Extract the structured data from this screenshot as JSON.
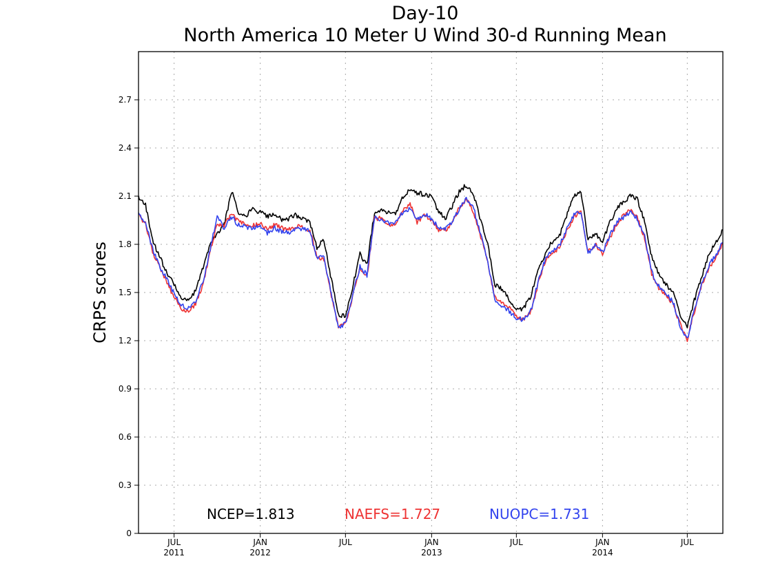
{
  "chart_data": {
    "type": "line",
    "title": "Day-10",
    "subtitle": "North America 10 Meter U Wind 30-d Running Mean",
    "xlabel": "",
    "ylabel": "CRPS scores",
    "ylim": [
      0,
      3.0
    ],
    "xlim": [
      "2011-04-16",
      "2014-09-15"
    ],
    "yticks": [
      0,
      0.3,
      0.6,
      0.9,
      1.2,
      1.5,
      1.8,
      2.1,
      2.4,
      2.7
    ],
    "ytick_labels": [
      "0",
      "0.3",
      "0.6",
      "0.9",
      "1.2",
      "1.5",
      "1.8",
      "2.1",
      "2.4",
      "2.7"
    ],
    "xticks": [
      {
        "date": "2011-07-01",
        "month": "JUL",
        "year": "2011"
      },
      {
        "date": "2012-01-01",
        "month": "JAN",
        "year": "2012"
      },
      {
        "date": "2012-07-01",
        "month": "JUL",
        "year": ""
      },
      {
        "date": "2013-01-01",
        "month": "JAN",
        "year": "2013"
      },
      {
        "date": "2013-07-01",
        "month": "JUL",
        "year": ""
      },
      {
        "date": "2014-01-01",
        "month": "JAN",
        "year": "2014"
      },
      {
        "date": "2014-07-01",
        "month": "JUL",
        "year": ""
      }
    ],
    "grid": true,
    "legend_position": "bottom-inside",
    "series": [
      {
        "name": "NCEP",
        "legend_label": "NCEP=1.813",
        "color": "#000000",
        "points": [
          [
            "2011-04-16",
            2.09
          ],
          [
            "2011-05-01",
            2.05
          ],
          [
            "2011-05-16",
            1.82
          ],
          [
            "2011-06-01",
            1.72
          ],
          [
            "2011-06-16",
            1.62
          ],
          [
            "2011-07-01",
            1.55
          ],
          [
            "2011-07-16",
            1.47
          ],
          [
            "2011-08-01",
            1.45
          ],
          [
            "2011-08-16",
            1.51
          ],
          [
            "2011-09-01",
            1.66
          ],
          [
            "2011-09-16",
            1.8
          ],
          [
            "2011-10-01",
            1.86
          ],
          [
            "2011-10-16",
            1.92
          ],
          [
            "2011-11-01",
            2.13
          ],
          [
            "2011-11-16",
            2.0
          ],
          [
            "2011-12-01",
            1.98
          ],
          [
            "2011-12-16",
            2.02
          ],
          [
            "2012-01-01",
            2.0
          ],
          [
            "2012-01-16",
            1.97
          ],
          [
            "2012-02-01",
            1.99
          ],
          [
            "2012-02-16",
            1.95
          ],
          [
            "2012-03-01",
            1.96
          ],
          [
            "2012-03-16",
            1.98
          ],
          [
            "2012-04-01",
            1.96
          ],
          [
            "2012-04-16",
            1.94
          ],
          [
            "2012-05-01",
            1.78
          ],
          [
            "2012-05-16",
            1.83
          ],
          [
            "2012-06-01",
            1.58
          ],
          [
            "2012-06-16",
            1.36
          ],
          [
            "2012-07-01",
            1.35
          ],
          [
            "2012-07-16",
            1.53
          ],
          [
            "2012-08-01",
            1.74
          ],
          [
            "2012-08-16",
            1.67
          ],
          [
            "2012-09-01",
            2.0
          ],
          [
            "2012-09-16",
            2.01
          ],
          [
            "2012-10-01",
            2.0
          ],
          [
            "2012-10-16",
            1.99
          ],
          [
            "2012-11-01",
            2.1
          ],
          [
            "2012-11-16",
            2.14
          ],
          [
            "2012-12-01",
            2.12
          ],
          [
            "2012-12-16",
            2.11
          ],
          [
            "2013-01-01",
            2.1
          ],
          [
            "2013-01-16",
            2.0
          ],
          [
            "2013-02-01",
            1.96
          ],
          [
            "2013-02-16",
            2.05
          ],
          [
            "2013-03-01",
            2.13
          ],
          [
            "2013-03-16",
            2.17
          ],
          [
            "2013-04-01",
            2.11
          ],
          [
            "2013-04-16",
            1.95
          ],
          [
            "2013-05-01",
            1.8
          ],
          [
            "2013-05-16",
            1.55
          ],
          [
            "2013-06-01",
            1.52
          ],
          [
            "2013-06-16",
            1.45
          ],
          [
            "2013-07-01",
            1.39
          ],
          [
            "2013-07-16",
            1.4
          ],
          [
            "2013-08-01",
            1.48
          ],
          [
            "2013-08-16",
            1.63
          ],
          [
            "2013-09-01",
            1.75
          ],
          [
            "2013-09-16",
            1.82
          ],
          [
            "2013-10-01",
            1.85
          ],
          [
            "2013-10-16",
            1.98
          ],
          [
            "2013-11-01",
            2.1
          ],
          [
            "2013-11-16",
            2.13
          ],
          [
            "2013-12-01",
            1.83
          ],
          [
            "2013-12-16",
            1.87
          ],
          [
            "2014-01-01",
            1.82
          ],
          [
            "2014-01-16",
            1.93
          ],
          [
            "2014-02-01",
            2.02
          ],
          [
            "2014-02-16",
            2.07
          ],
          [
            "2014-03-01",
            2.1
          ],
          [
            "2014-03-16",
            2.08
          ],
          [
            "2014-04-01",
            1.94
          ],
          [
            "2014-04-16",
            1.72
          ],
          [
            "2014-05-01",
            1.62
          ],
          [
            "2014-05-16",
            1.55
          ],
          [
            "2014-06-01",
            1.5
          ],
          [
            "2014-06-16",
            1.36
          ],
          [
            "2014-07-01",
            1.29
          ],
          [
            "2014-07-16",
            1.45
          ],
          [
            "2014-08-01",
            1.6
          ],
          [
            "2014-08-16",
            1.74
          ],
          [
            "2014-09-01",
            1.82
          ],
          [
            "2014-09-15",
            1.89
          ]
        ]
      },
      {
        "name": "NAEFS",
        "legend_label": "NAEFS=1.727",
        "color": "#ee3333",
        "points": [
          [
            "2011-04-16",
            1.98
          ],
          [
            "2011-05-01",
            1.93
          ],
          [
            "2011-05-16",
            1.75
          ],
          [
            "2011-06-01",
            1.65
          ],
          [
            "2011-06-16",
            1.56
          ],
          [
            "2011-07-01",
            1.47
          ],
          [
            "2011-07-16",
            1.4
          ],
          [
            "2011-08-01",
            1.38
          ],
          [
            "2011-08-16",
            1.43
          ],
          [
            "2011-09-01",
            1.55
          ],
          [
            "2011-09-16",
            1.75
          ],
          [
            "2011-10-01",
            1.93
          ],
          [
            "2011-10-16",
            1.92
          ],
          [
            "2011-11-01",
            1.99
          ],
          [
            "2011-11-16",
            1.94
          ],
          [
            "2011-12-01",
            1.93
          ],
          [
            "2011-12-16",
            1.92
          ],
          [
            "2012-01-01",
            1.93
          ],
          [
            "2012-01-16",
            1.89
          ],
          [
            "2012-02-01",
            1.92
          ],
          [
            "2012-02-16",
            1.9
          ],
          [
            "2012-03-01",
            1.89
          ],
          [
            "2012-03-16",
            1.91
          ],
          [
            "2012-04-01",
            1.91
          ],
          [
            "2012-04-16",
            1.89
          ],
          [
            "2012-05-01",
            1.72
          ],
          [
            "2012-05-16",
            1.71
          ],
          [
            "2012-06-01",
            1.48
          ],
          [
            "2012-06-16",
            1.28
          ],
          [
            "2012-07-01",
            1.3
          ],
          [
            "2012-07-16",
            1.47
          ],
          [
            "2012-08-01",
            1.65
          ],
          [
            "2012-08-16",
            1.6
          ],
          [
            "2012-09-01",
            1.96
          ],
          [
            "2012-09-16",
            1.96
          ],
          [
            "2012-10-01",
            1.92
          ],
          [
            "2012-10-16",
            1.93
          ],
          [
            "2012-11-01",
            2.02
          ],
          [
            "2012-11-16",
            2.05
          ],
          [
            "2012-12-01",
            1.94
          ],
          [
            "2012-12-16",
            1.98
          ],
          [
            "2013-01-01",
            1.95
          ],
          [
            "2013-01-16",
            1.89
          ],
          [
            "2013-02-01",
            1.89
          ],
          [
            "2013-02-16",
            1.94
          ],
          [
            "2013-03-01",
            2.03
          ],
          [
            "2013-03-16",
            2.08
          ],
          [
            "2013-04-01",
            2.0
          ],
          [
            "2013-04-16",
            1.85
          ],
          [
            "2013-05-01",
            1.68
          ],
          [
            "2013-05-16",
            1.47
          ],
          [
            "2013-06-01",
            1.44
          ],
          [
            "2013-06-16",
            1.41
          ],
          [
            "2013-07-01",
            1.35
          ],
          [
            "2013-07-16",
            1.33
          ],
          [
            "2013-08-01",
            1.38
          ],
          [
            "2013-08-16",
            1.55
          ],
          [
            "2013-09-01",
            1.7
          ],
          [
            "2013-09-16",
            1.75
          ],
          [
            "2013-10-01",
            1.78
          ],
          [
            "2013-10-16",
            1.88
          ],
          [
            "2013-11-01",
            1.97
          ],
          [
            "2013-11-16",
            2.02
          ],
          [
            "2013-12-01",
            1.75
          ],
          [
            "2013-12-16",
            1.8
          ],
          [
            "2014-01-01",
            1.74
          ],
          [
            "2014-01-16",
            1.84
          ],
          [
            "2014-02-01",
            1.93
          ],
          [
            "2014-02-16",
            1.98
          ],
          [
            "2014-03-01",
            2.01
          ],
          [
            "2014-03-16",
            1.97
          ],
          [
            "2014-04-01",
            1.84
          ],
          [
            "2014-04-16",
            1.62
          ],
          [
            "2014-05-01",
            1.53
          ],
          [
            "2014-05-16",
            1.48
          ],
          [
            "2014-06-01",
            1.43
          ],
          [
            "2014-06-16",
            1.3
          ],
          [
            "2014-07-01",
            1.21
          ],
          [
            "2014-07-16",
            1.38
          ],
          [
            "2014-08-01",
            1.55
          ],
          [
            "2014-08-16",
            1.65
          ],
          [
            "2014-09-01",
            1.73
          ],
          [
            "2014-09-15",
            1.8
          ]
        ]
      },
      {
        "name": "NUOPC",
        "legend_label": "NUOPC=1.731",
        "color": "#3344ee",
        "points": [
          [
            "2011-04-16",
            1.99
          ],
          [
            "2011-05-01",
            1.94
          ],
          [
            "2011-05-16",
            1.77
          ],
          [
            "2011-06-01",
            1.66
          ],
          [
            "2011-06-16",
            1.58
          ],
          [
            "2011-07-01",
            1.49
          ],
          [
            "2011-07-16",
            1.42
          ],
          [
            "2011-08-01",
            1.4
          ],
          [
            "2011-08-16",
            1.45
          ],
          [
            "2011-09-01",
            1.57
          ],
          [
            "2011-09-16",
            1.77
          ],
          [
            "2011-10-01",
            1.97
          ],
          [
            "2011-10-16",
            1.9
          ],
          [
            "2011-11-01",
            1.97
          ],
          [
            "2011-11-16",
            1.92
          ],
          [
            "2011-12-01",
            1.91
          ],
          [
            "2011-12-16",
            1.9
          ],
          [
            "2012-01-01",
            1.91
          ],
          [
            "2012-01-16",
            1.87
          ],
          [
            "2012-02-01",
            1.9
          ],
          [
            "2012-02-16",
            1.88
          ],
          [
            "2012-03-01",
            1.87
          ],
          [
            "2012-03-16",
            1.89
          ],
          [
            "2012-04-01",
            1.9
          ],
          [
            "2012-04-16",
            1.88
          ],
          [
            "2012-05-01",
            1.71
          ],
          [
            "2012-05-16",
            1.72
          ],
          [
            "2012-06-01",
            1.49
          ],
          [
            "2012-06-16",
            1.27
          ],
          [
            "2012-07-01",
            1.31
          ],
          [
            "2012-07-16",
            1.48
          ],
          [
            "2012-08-01",
            1.66
          ],
          [
            "2012-08-16",
            1.61
          ],
          [
            "2012-09-01",
            1.97
          ],
          [
            "2012-09-16",
            1.95
          ],
          [
            "2012-10-01",
            1.93
          ],
          [
            "2012-10-16",
            1.94
          ],
          [
            "2012-11-01",
            2.0
          ],
          [
            "2012-11-16",
            2.02
          ],
          [
            "2012-12-01",
            1.95
          ],
          [
            "2012-12-16",
            1.99
          ],
          [
            "2013-01-01",
            1.96
          ],
          [
            "2013-01-16",
            1.9
          ],
          [
            "2013-02-01",
            1.9
          ],
          [
            "2013-02-16",
            1.95
          ],
          [
            "2013-03-01",
            2.02
          ],
          [
            "2013-03-16",
            2.09
          ],
          [
            "2013-04-01",
            2.02
          ],
          [
            "2013-04-16",
            1.86
          ],
          [
            "2013-05-01",
            1.7
          ],
          [
            "2013-05-16",
            1.45
          ],
          [
            "2013-06-01",
            1.42
          ],
          [
            "2013-06-16",
            1.38
          ],
          [
            "2013-07-01",
            1.34
          ],
          [
            "2013-07-16",
            1.33
          ],
          [
            "2013-08-01",
            1.39
          ],
          [
            "2013-08-16",
            1.56
          ],
          [
            "2013-09-01",
            1.71
          ],
          [
            "2013-09-16",
            1.76
          ],
          [
            "2013-10-01",
            1.79
          ],
          [
            "2013-10-16",
            1.89
          ],
          [
            "2013-11-01",
            1.98
          ],
          [
            "2013-11-16",
            2.01
          ],
          [
            "2013-12-01",
            1.74
          ],
          [
            "2013-12-16",
            1.79
          ],
          [
            "2014-01-01",
            1.75
          ],
          [
            "2014-01-16",
            1.85
          ],
          [
            "2014-02-01",
            1.94
          ],
          [
            "2014-02-16",
            1.97
          ],
          [
            "2014-03-01",
            2.0
          ],
          [
            "2014-03-16",
            1.96
          ],
          [
            "2014-04-01",
            1.85
          ],
          [
            "2014-04-16",
            1.63
          ],
          [
            "2014-05-01",
            1.54
          ],
          [
            "2014-05-16",
            1.49
          ],
          [
            "2014-06-01",
            1.44
          ],
          [
            "2014-06-16",
            1.29
          ],
          [
            "2014-07-01",
            1.21
          ],
          [
            "2014-07-16",
            1.39
          ],
          [
            "2014-08-01",
            1.56
          ],
          [
            "2014-08-16",
            1.67
          ],
          [
            "2014-09-01",
            1.74
          ],
          [
            "2014-09-15",
            1.81
          ]
        ]
      }
    ]
  }
}
